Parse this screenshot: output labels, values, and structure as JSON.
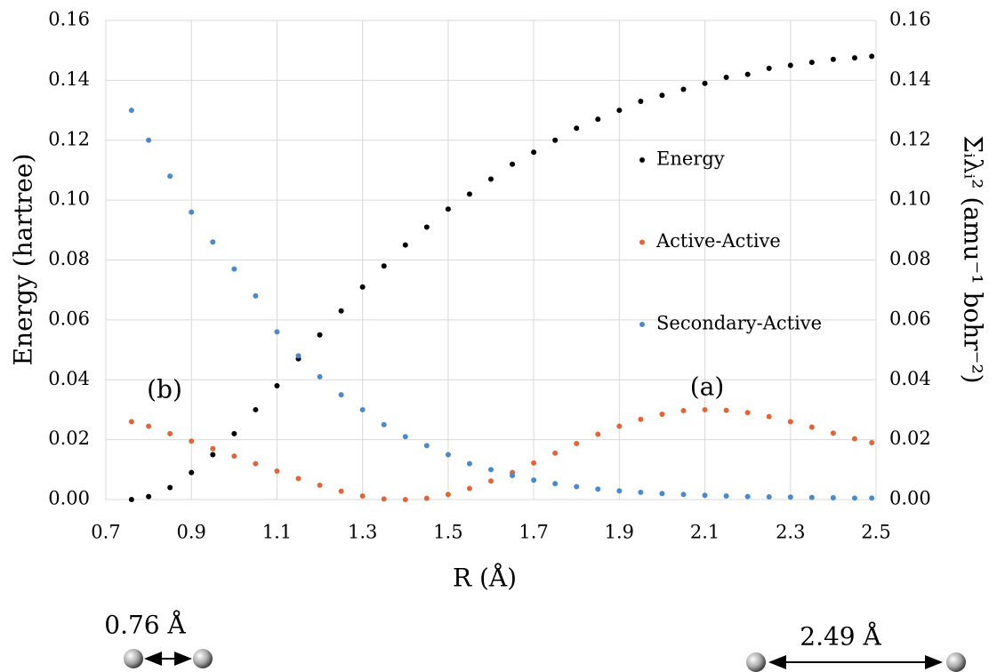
{
  "chart_data": {
    "type": "scatter",
    "x_label": "R (Å)",
    "y_label": "Energy (hartree)",
    "y2_label": "Σᵢλᵢ² (amu⁻¹ bohr⁻²)",
    "annotations": [
      "(a)",
      "(b)",
      "0.76 Å",
      "2.49 Å"
    ],
    "x": [
      0.76,
      0.8,
      0.85,
      0.9,
      0.95,
      1.0,
      1.05,
      1.1,
      1.15,
      1.2,
      1.25,
      1.3,
      1.35,
      1.4,
      1.45,
      1.5,
      1.55,
      1.6,
      1.65,
      1.7,
      1.75,
      1.8,
      1.85,
      1.9,
      1.95,
      2.0,
      2.05,
      2.1,
      2.15,
      2.2,
      2.25,
      2.3,
      2.35,
      2.4,
      2.45,
      2.49
    ],
    "series": [
      {
        "name": "Energy",
        "color": "#000000",
        "axis": "y",
        "values": [
          0.0,
          0.001,
          0.004,
          0.009,
          0.015,
          0.022,
          0.03,
          0.038,
          0.047,
          0.055,
          0.063,
          0.071,
          0.078,
          0.085,
          0.091,
          0.097,
          0.102,
          0.107,
          0.112,
          0.116,
          0.12,
          0.124,
          0.127,
          0.13,
          0.133,
          0.135,
          0.137,
          0.139,
          0.141,
          0.142,
          0.144,
          0.145,
          0.146,
          0.147,
          0.1475,
          0.148
        ]
      },
      {
        "name": "Active-Active",
        "color": "#e0653a",
        "axis": "y2",
        "values": [
          0.026,
          0.0245,
          0.022,
          0.0195,
          0.017,
          0.0145,
          0.012,
          0.0095,
          0.007,
          0.0048,
          0.0028,
          0.0012,
          0.0002,
          0.0,
          0.0004,
          0.0017,
          0.0037,
          0.0062,
          0.009,
          0.0122,
          0.0155,
          0.0187,
          0.0218,
          0.0245,
          0.0268,
          0.0285,
          0.0297,
          0.03,
          0.0298,
          0.029,
          0.0277,
          0.026,
          0.0242,
          0.0222,
          0.0203,
          0.019
        ]
      },
      {
        "name": "Secondary-Active",
        "color": "#4a8ac9",
        "axis": "y2",
        "values": [
          0.13,
          0.12,
          0.108,
          0.096,
          0.086,
          0.077,
          0.068,
          0.056,
          0.048,
          0.041,
          0.035,
          0.03,
          0.025,
          0.021,
          0.018,
          0.015,
          0.012,
          0.01,
          0.008,
          0.0065,
          0.0053,
          0.0043,
          0.0035,
          0.0029,
          0.0024,
          0.002,
          0.0017,
          0.0014,
          0.0012,
          0.001,
          0.0009,
          0.0008,
          0.0007,
          0.0006,
          0.0005,
          0.0005
        ]
      }
    ],
    "xlim": [
      0.7,
      2.5
    ],
    "xticks": [
      0.7,
      0.9,
      1.1,
      1.3,
      1.5,
      1.7,
      1.9,
      2.1,
      2.3,
      2.5
    ],
    "ylim": [
      0,
      0.16
    ],
    "yticks": [
      {
        "value": 0,
        "label": "0.00"
      },
      {
        "value": 0.02,
        "label": "0.02"
      },
      {
        "value": 0.04,
        "label": "0.04"
      },
      {
        "value": 0.06,
        "label": "0.06"
      },
      {
        "value": 0.08,
        "label": "0.08"
      },
      {
        "value": 0.1,
        "label": "0.10"
      },
      {
        "value": 0.12,
        "label": "0.12"
      },
      {
        "value": 0.14,
        "label": "0.14"
      },
      {
        "value": 0.16,
        "label": "0.16"
      }
    ],
    "y2lim": [
      0,
      0.16
    ],
    "y2ticks": [
      {
        "value": 0,
        "label": "0.00"
      },
      {
        "value": 0.02,
        "label": "0.02"
      },
      {
        "value": 0.04,
        "label": "0.04"
      },
      {
        "value": 0.06,
        "label": "0.06"
      },
      {
        "value": 0.08,
        "label": "0.08"
      },
      {
        "value": 0.1,
        "label": "0.10"
      },
      {
        "value": 0.12,
        "label": "0.12"
      },
      {
        "value": 0.14,
        "label": "0.14"
      },
      {
        "value": 0.16,
        "label": "0.16"
      }
    ],
    "grid": true,
    "legend": "right"
  }
}
